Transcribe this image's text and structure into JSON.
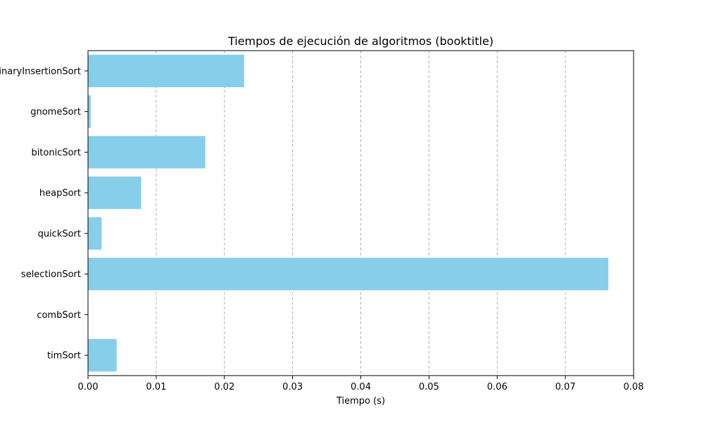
{
  "chart_data": {
    "type": "bar",
    "orientation": "horizontal",
    "title": "Tiempos de ejecución de algoritmos (booktitle)",
    "xlabel": "Tiempo (s)",
    "ylabel": "",
    "categories": [
      "timSort",
      "combSort",
      "selectionSort",
      "quickSort",
      "heapSort",
      "bitonicSort",
      "gnomeSort",
      "binaryInsertionSort"
    ],
    "values": [
      0.0042,
      0.0,
      0.0763,
      0.002,
      0.0078,
      0.0172,
      0.0004,
      0.0229
    ],
    "xlim": [
      0,
      0.08
    ],
    "xticks": [
      "0.00",
      "0.01",
      "0.02",
      "0.03",
      "0.04",
      "0.05",
      "0.06",
      "0.07",
      "0.08"
    ],
    "xtick_values": [
      0,
      0.01,
      0.02,
      0.03,
      0.04,
      0.05,
      0.06,
      0.07,
      0.08
    ],
    "grid": "x-dashed",
    "bar_color": "#87ceeb"
  }
}
